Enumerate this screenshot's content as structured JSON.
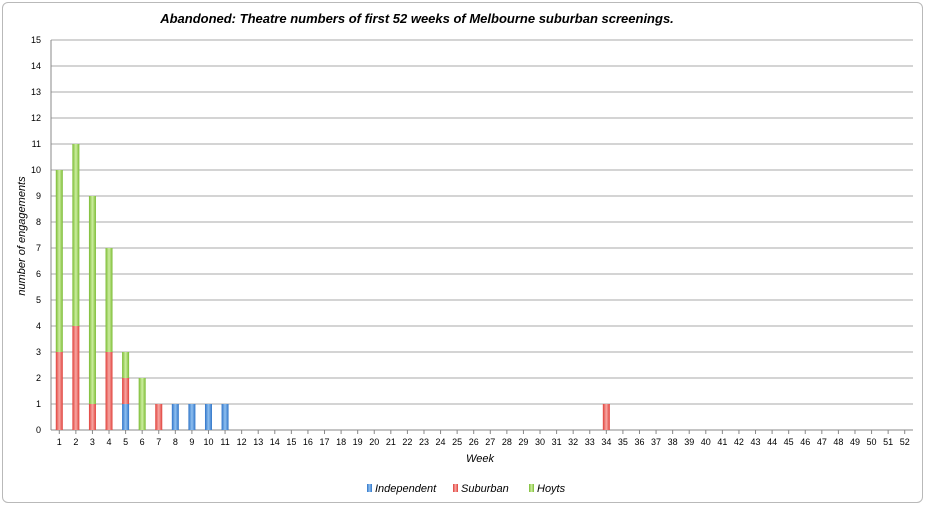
{
  "chart_data": {
    "type": "bar",
    "stacked": true,
    "title": "Abandoned: Theatre numbers of first 52 weeks of Melbourne suburban screenings.",
    "xlabel": "Week",
    "ylabel": "number of engagements",
    "ylim": [
      0,
      15
    ],
    "yticks": [
      "0",
      "1",
      "2",
      "3",
      "4",
      "5",
      "6",
      "7",
      "8",
      "9",
      "10",
      "11",
      "12",
      "13",
      "14",
      "15"
    ],
    "grid": true,
    "legend_position": "bottom",
    "categories": [
      "1",
      "2",
      "3",
      "4",
      "5",
      "6",
      "7",
      "8",
      "9",
      "10",
      "11",
      "12",
      "13",
      "14",
      "15",
      "16",
      "17",
      "18",
      "19",
      "20",
      "21",
      "22",
      "23",
      "24",
      "25",
      "26",
      "27",
      "28",
      "29",
      "30",
      "31",
      "32",
      "33",
      "34",
      "35",
      "36",
      "37",
      "38",
      "39",
      "40",
      "41",
      "42",
      "43",
      "44",
      "45",
      "46",
      "47",
      "48",
      "49",
      "50",
      "51",
      "52"
    ],
    "series": [
      {
        "name": "Independent",
        "color": "#4a90d9",
        "values": [
          0,
          0,
          0,
          0,
          1,
          0,
          0,
          1,
          1,
          1,
          1,
          0,
          0,
          0,
          0,
          0,
          0,
          0,
          0,
          0,
          0,
          0,
          0,
          0,
          0,
          0,
          0,
          0,
          0,
          0,
          0,
          0,
          0,
          0,
          0,
          0,
          0,
          0,
          0,
          0,
          0,
          0,
          0,
          0,
          0,
          0,
          0,
          0,
          0,
          0,
          0,
          0
        ]
      },
      {
        "name": "Suburban",
        "color": "#e8504a",
        "values": [
          3,
          4,
          1,
          3,
          1,
          0,
          1,
          0,
          0,
          0,
          0,
          0,
          0,
          0,
          0,
          0,
          0,
          0,
          0,
          0,
          0,
          0,
          0,
          0,
          0,
          0,
          0,
          0,
          0,
          0,
          0,
          0,
          0,
          1,
          0,
          0,
          0,
          0,
          0,
          0,
          0,
          0,
          0,
          0,
          0,
          0,
          0,
          0,
          0,
          0,
          0,
          0
        ]
      },
      {
        "name": "Hoyts",
        "color": "#8cc63f",
        "values": [
          7,
          7,
          8,
          4,
          1,
          2,
          0,
          0,
          0,
          0,
          0,
          0,
          0,
          0,
          0,
          0,
          0,
          0,
          0,
          0,
          0,
          0,
          0,
          0,
          0,
          0,
          0,
          0,
          0,
          0,
          0,
          0,
          0,
          0,
          0,
          0,
          0,
          0,
          0,
          0,
          0,
          0,
          0,
          0,
          0,
          0,
          0,
          0,
          0,
          0,
          0,
          0
        ]
      }
    ]
  }
}
